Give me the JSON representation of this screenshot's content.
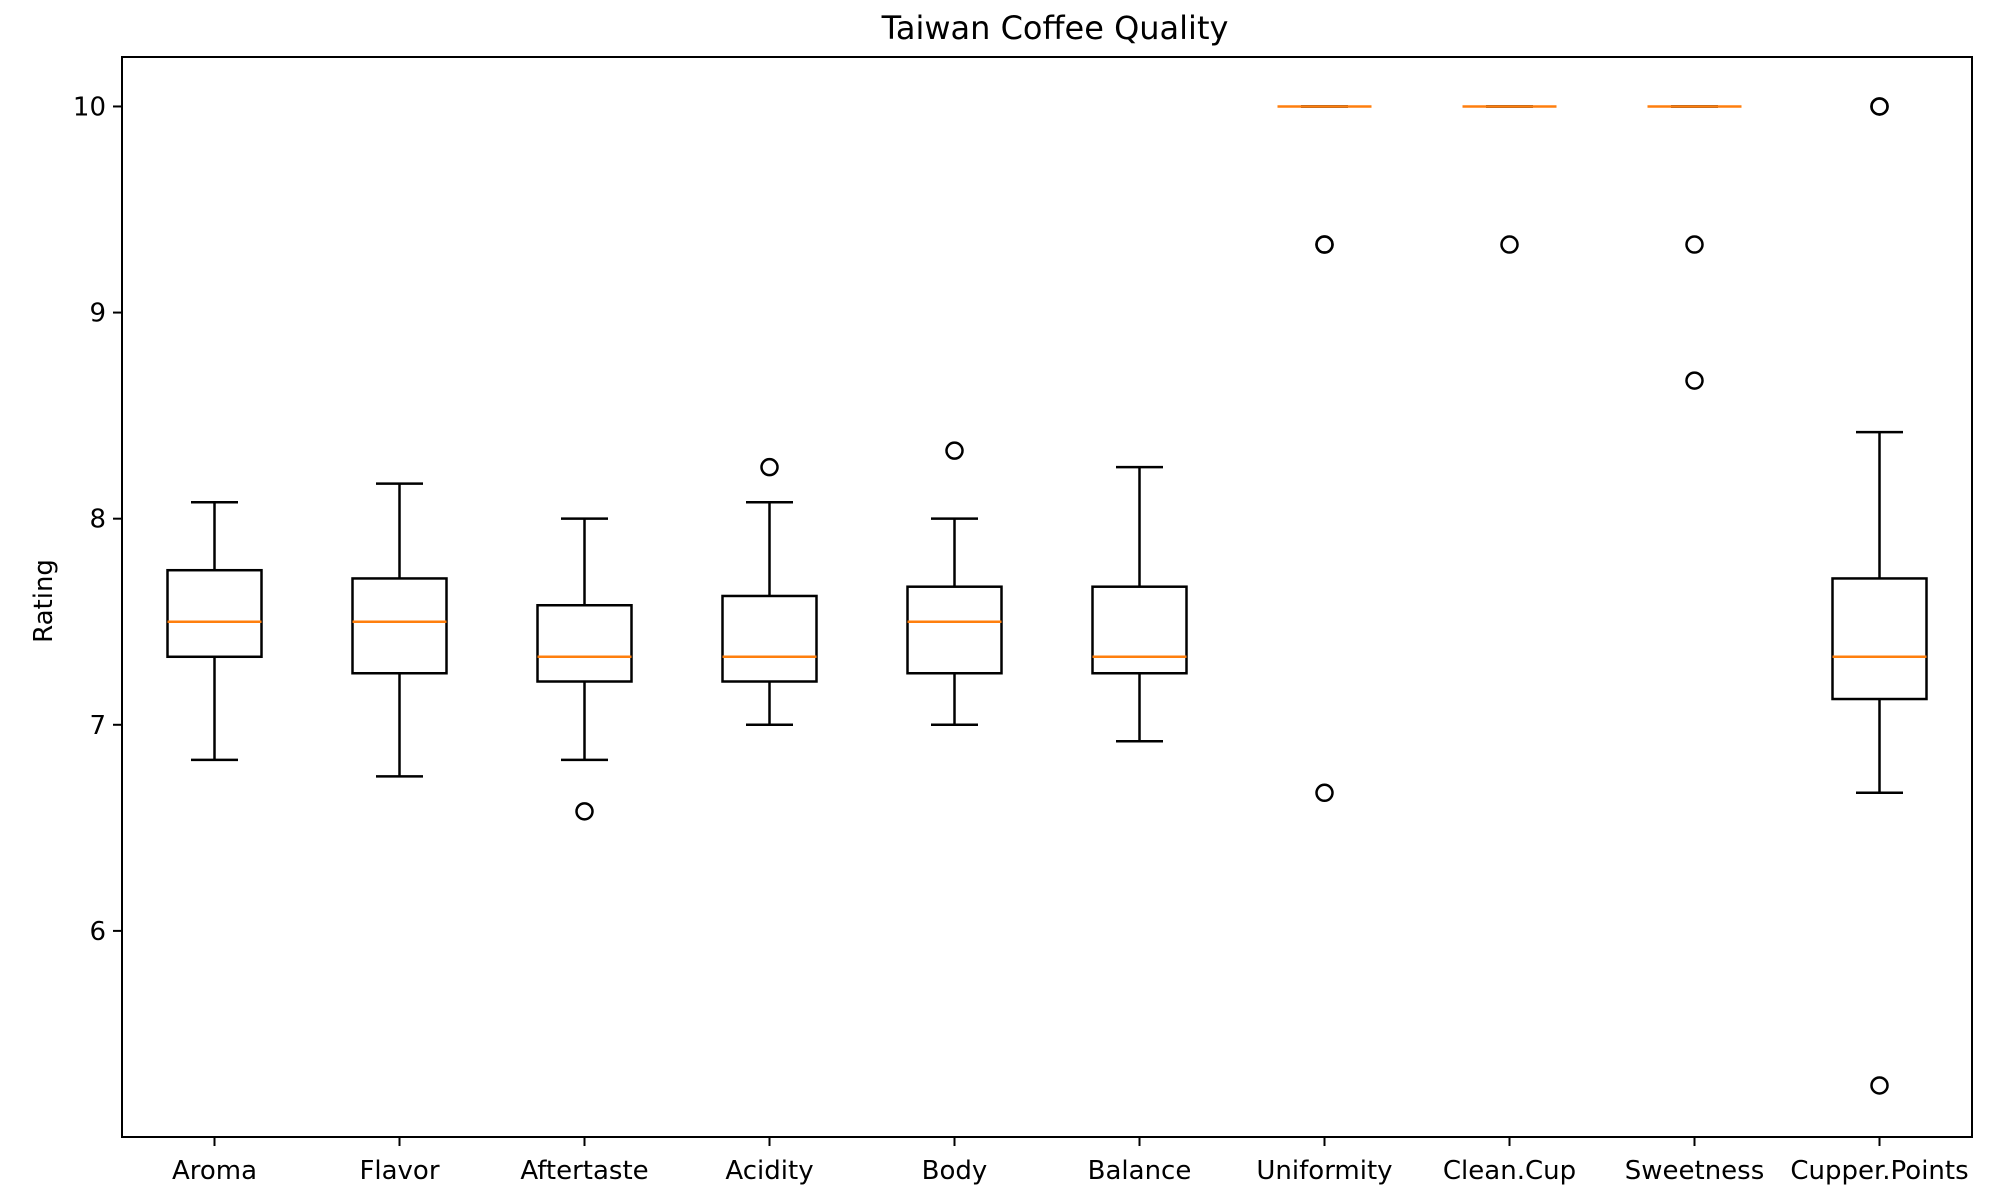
{
  "chart_data": {
    "type": "boxplot",
    "title": "Taiwan Coffee Quality",
    "xlabel": "",
    "ylabel": "Rating",
    "ylim": [
      5.0,
      10.24
    ],
    "yticks": [
      6,
      7,
      8,
      9,
      10
    ],
    "grid": false,
    "colors": {
      "box": "#000000",
      "median": "#ff7f0e",
      "background": "#ffffff"
    },
    "categories": [
      "Aroma",
      "Flavor",
      "Aftertaste",
      "Acidity",
      "Body",
      "Balance",
      "Uniformity",
      "Clean.Cup",
      "Sweetness",
      "Cupper.Points"
    ],
    "boxes": [
      {
        "category": "Aroma",
        "whisker_low": 6.83,
        "q1": 7.33,
        "median": 7.5,
        "q3": 7.75,
        "whisker_high": 8.08,
        "outliers": []
      },
      {
        "category": "Flavor",
        "whisker_low": 6.75,
        "q1": 7.25,
        "median": 7.5,
        "q3": 7.71,
        "whisker_high": 8.17,
        "outliers": []
      },
      {
        "category": "Aftertaste",
        "whisker_low": 6.83,
        "q1": 7.21,
        "median": 7.33,
        "q3": 7.58,
        "whisker_high": 8.0,
        "outliers": [
          6.58
        ]
      },
      {
        "category": "Acidity",
        "whisker_low": 7.0,
        "q1": 7.21,
        "median": 7.33,
        "q3": 7.625,
        "whisker_high": 8.08,
        "outliers": [
          8.25
        ]
      },
      {
        "category": "Body",
        "whisker_low": 7.0,
        "q1": 7.25,
        "median": 7.5,
        "q3": 7.67,
        "whisker_high": 8.0,
        "outliers": [
          8.33
        ]
      },
      {
        "category": "Balance",
        "whisker_low": 6.92,
        "q1": 7.25,
        "median": 7.33,
        "q3": 7.67,
        "whisker_high": 8.25,
        "outliers": []
      },
      {
        "category": "Uniformity",
        "whisker_low": 10.0,
        "q1": 10.0,
        "median": 10.0,
        "q3": 10.0,
        "whisker_high": 10.0,
        "outliers": [
          9.33,
          9.33,
          6.67
        ]
      },
      {
        "category": "Clean.Cup",
        "whisker_low": 10.0,
        "q1": 10.0,
        "median": 10.0,
        "q3": 10.0,
        "whisker_high": 10.0,
        "outliers": [
          9.33
        ]
      },
      {
        "category": "Sweetness",
        "whisker_low": 10.0,
        "q1": 10.0,
        "median": 10.0,
        "q3": 10.0,
        "whisker_high": 10.0,
        "outliers": [
          9.33,
          8.67
        ]
      },
      {
        "category": "Cupper.Points",
        "whisker_low": 6.67,
        "q1": 7.125,
        "median": 7.33,
        "q3": 7.71,
        "whisker_high": 8.42,
        "outliers": [
          10.0,
          10.0,
          5.25
        ]
      }
    ]
  }
}
